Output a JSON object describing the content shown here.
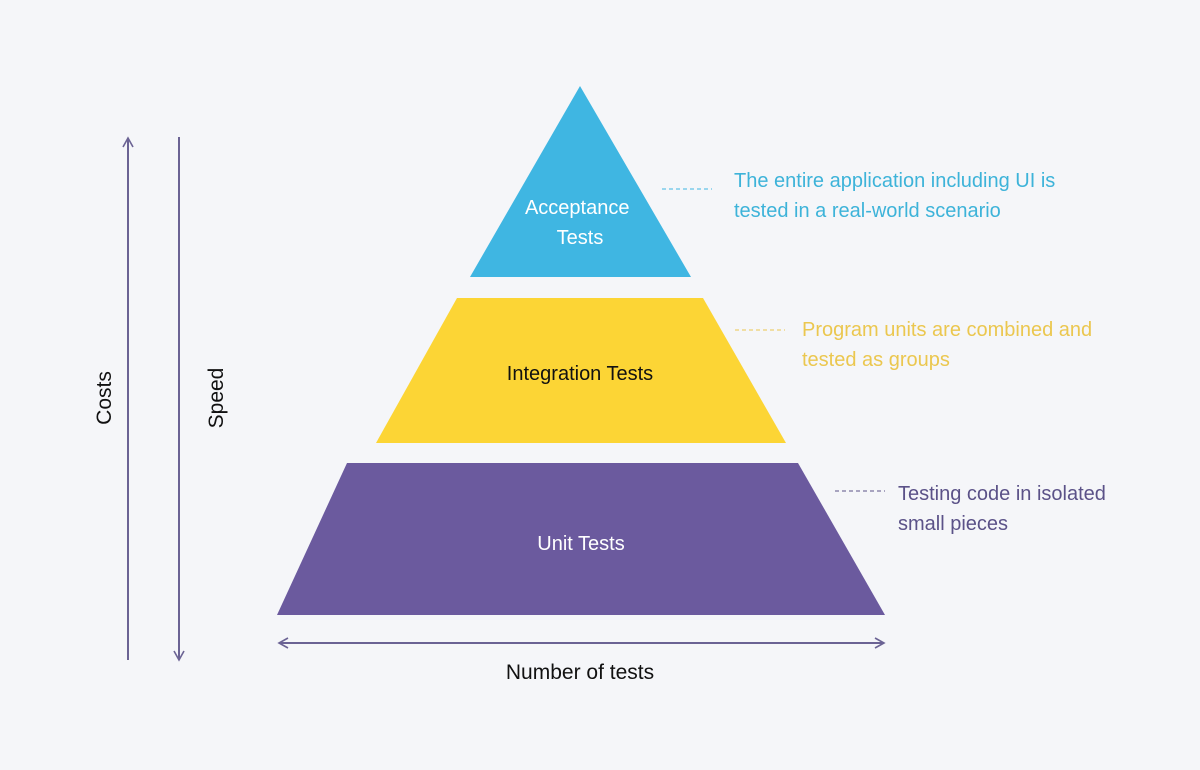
{
  "colors": {
    "background": "#f5f6f9",
    "acceptance": "#3fb6e2",
    "integration": "#fcd535",
    "unit": "#6b5a9e",
    "axis": "#6b6394",
    "acceptance_text": "#3db3d9",
    "integration_text": "#ebc74f",
    "unit_text": "#5b5288"
  },
  "axes": {
    "costs": "Costs",
    "speed": "Speed",
    "number_of_tests": "Number of tests"
  },
  "levels": [
    {
      "label_lines": [
        "Acceptance",
        "Tests"
      ],
      "description_lines": [
        "The entire application including UI is",
        "tested in a real-world scenario"
      ]
    },
    {
      "label_lines": [
        "Integration Tests"
      ],
      "description_lines": [
        "Program units are combined and",
        "tested as groups"
      ]
    },
    {
      "label_lines": [
        "Unit Tests"
      ],
      "description_lines": [
        "Testing code in isolated",
        "small pieces"
      ]
    }
  ]
}
